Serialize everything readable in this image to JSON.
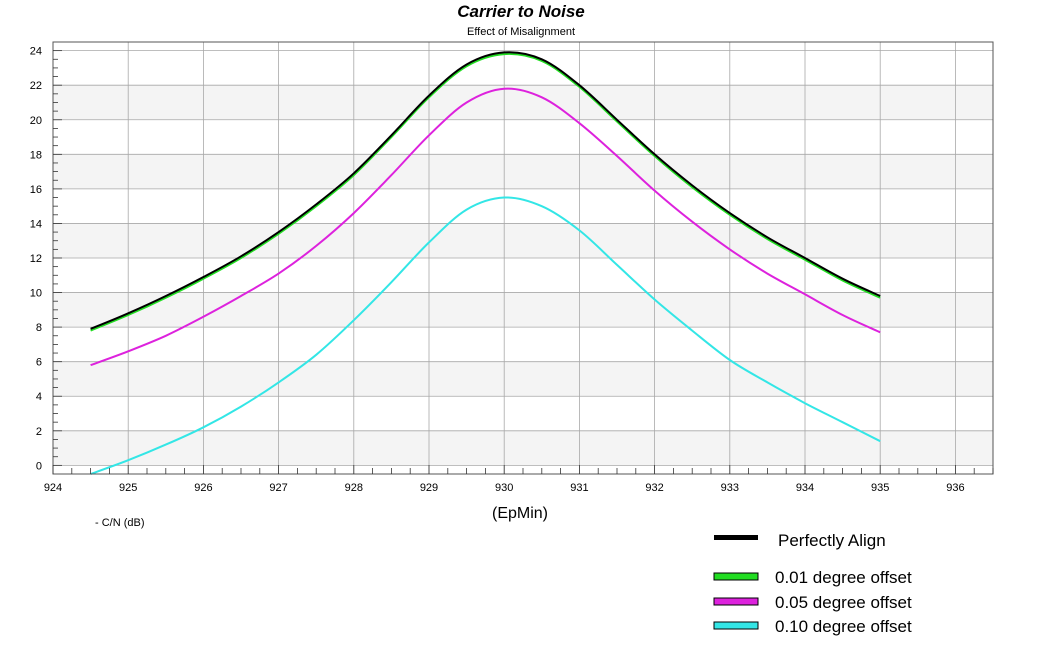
{
  "chart_data": {
    "type": "line",
    "title": "Carrier to Noise",
    "subtitle": "Effect of Misalignment",
    "xlabel": "(EpMin)",
    "ylabel": "- C/N (dB)",
    "xlim": [
      924,
      936.5
    ],
    "ylim": [
      -0.5,
      24.5
    ],
    "x_ticks": [
      924,
      925,
      926,
      927,
      928,
      929,
      930,
      931,
      932,
      933,
      934,
      935,
      936
    ],
    "y_ticks": [
      0,
      2,
      4,
      6,
      8,
      10,
      12,
      14,
      16,
      18,
      20,
      22,
      24
    ],
    "grid": true,
    "legend_position": "bottom-right",
    "x": [
      924.5,
      925.0,
      925.5,
      926.0,
      926.5,
      927.0,
      927.5,
      928.0,
      928.5,
      929.0,
      929.5,
      930.0,
      930.5,
      931.0,
      931.5,
      932.0,
      932.5,
      933.0,
      933.5,
      934.0,
      934.5,
      935.0
    ],
    "series": [
      {
        "name": "Perfectly Align",
        "color": "#000000",
        "values": [
          7.9,
          8.8,
          9.8,
          10.9,
          12.1,
          13.5,
          15.1,
          16.9,
          19.1,
          21.4,
          23.2,
          23.9,
          23.5,
          22.0,
          20.0,
          18.0,
          16.2,
          14.6,
          13.2,
          12.0,
          10.8,
          9.8
        ]
      },
      {
        "name": "0.01 degree offset",
        "color": "#22dd22",
        "values": [
          7.8,
          8.7,
          9.7,
          10.8,
          12.0,
          13.4,
          15.0,
          16.8,
          19.0,
          21.3,
          23.1,
          23.8,
          23.4,
          21.9,
          19.9,
          17.9,
          16.1,
          14.5,
          13.1,
          11.9,
          10.7,
          9.7
        ]
      },
      {
        "name": "0.05 degree offset",
        "color": "#dd22dd",
        "values": [
          5.8,
          6.6,
          7.5,
          8.6,
          9.8,
          11.1,
          12.7,
          14.6,
          16.8,
          19.1,
          21.0,
          21.8,
          21.3,
          19.8,
          17.9,
          15.9,
          14.1,
          12.5,
          11.1,
          9.9,
          8.7,
          7.7
        ]
      },
      {
        "name": "0.10 degree offset",
        "color": "#33e6e6",
        "values": [
          -0.5,
          0.3,
          1.2,
          2.2,
          3.4,
          4.8,
          6.4,
          8.4,
          10.6,
          12.9,
          14.8,
          15.5,
          15.0,
          13.6,
          11.6,
          9.6,
          7.8,
          6.1,
          4.8,
          3.6,
          2.5,
          1.4
        ]
      }
    ]
  }
}
